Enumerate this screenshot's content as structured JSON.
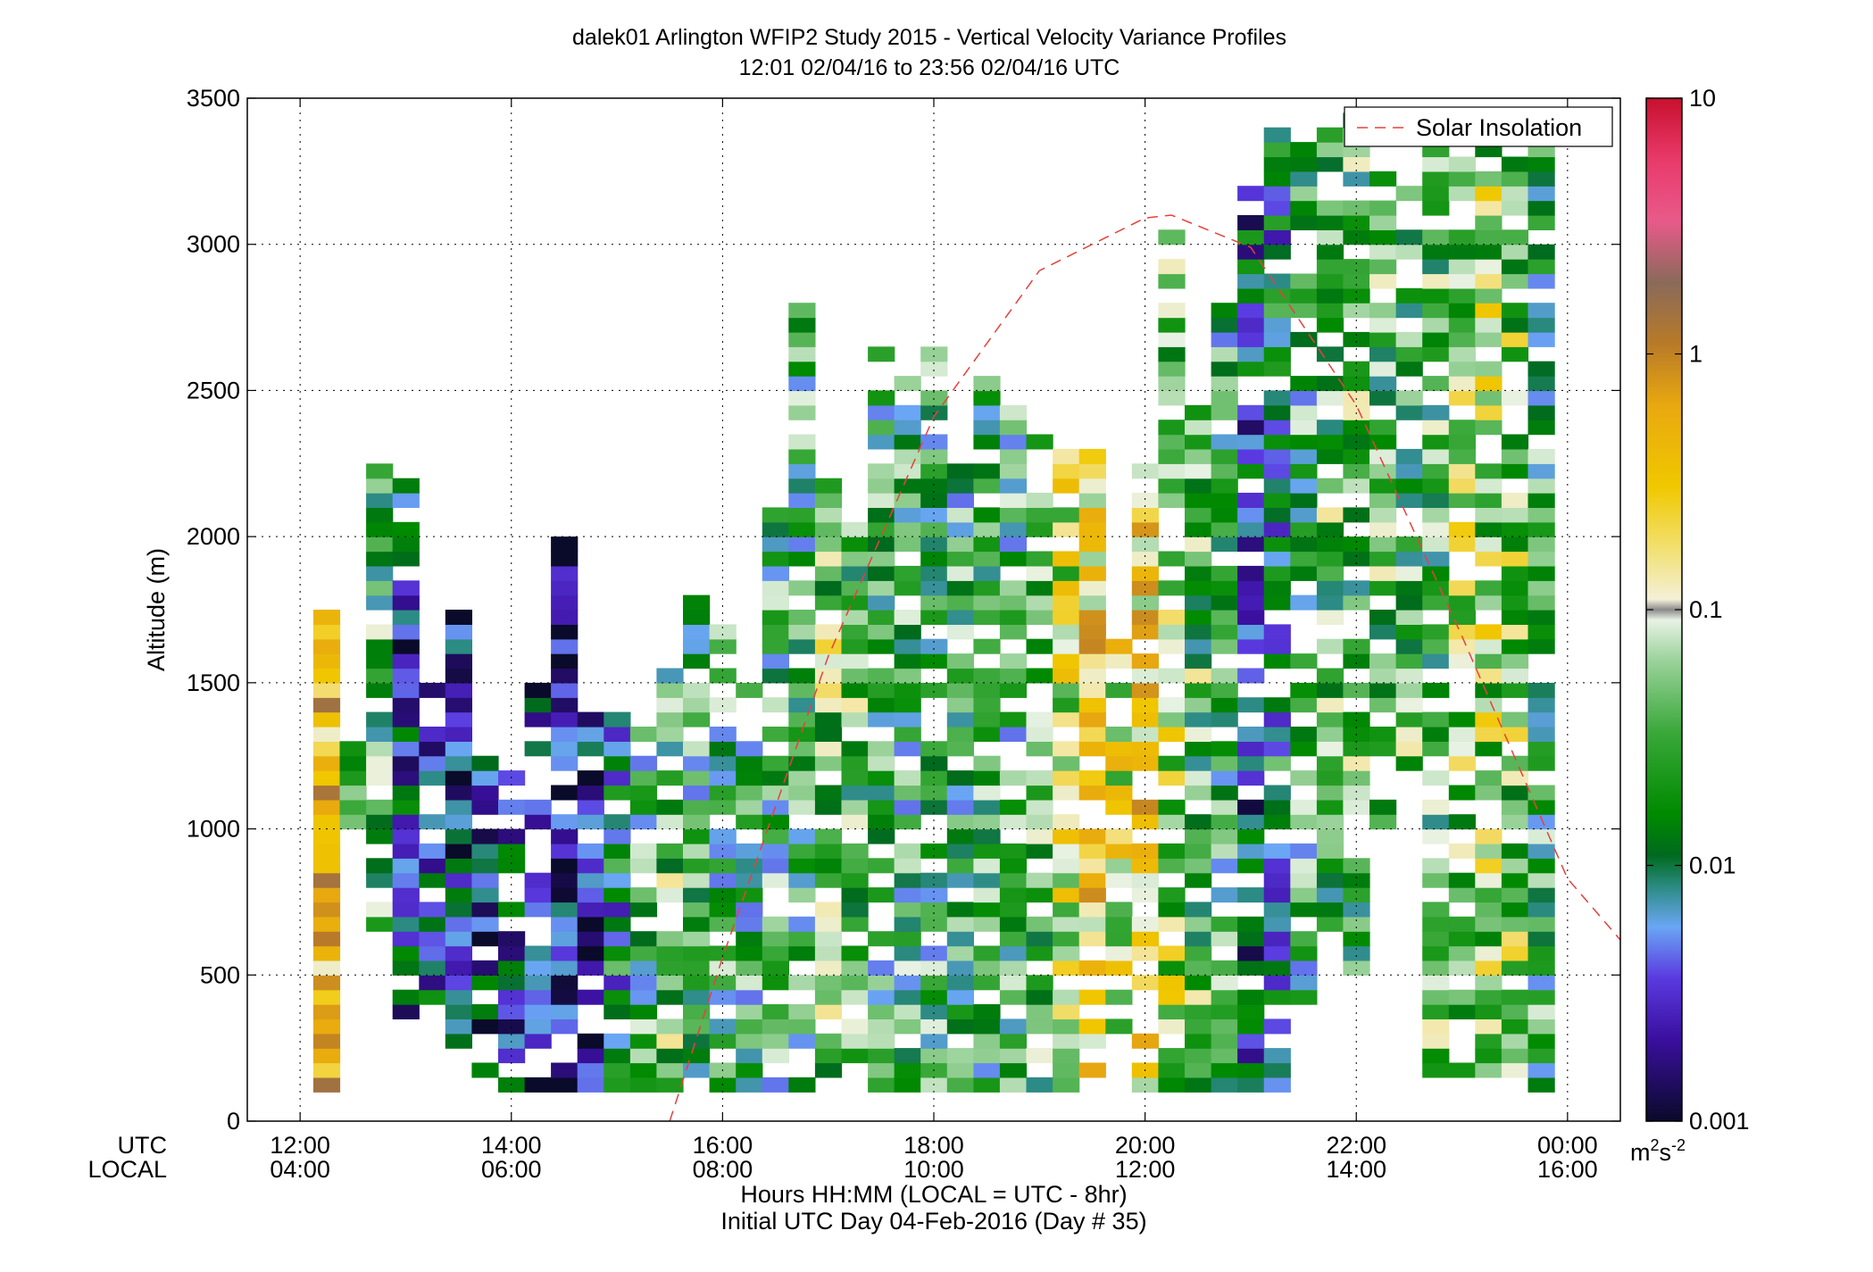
{
  "chart_data": {
    "type": "heatmap",
    "title": "dalek01 Arlington WFIP2 Study 2015 - Vertical Velocity Variance Profiles",
    "subtitle": "12:01 02/04/16 to 23:56 02/04/16  UTC",
    "ylabel": "Altitude (m)",
    "xlabel": "Hours HH:MM  (LOCAL = UTC - 8hr)",
    "xlabel2": "Initial UTC Day 04-Feb-2016 (Day # 35)",
    "x_row_labels": [
      "UTC",
      "LOCAL"
    ],
    "xlim_utc_hours": [
      11.5,
      24.5
    ],
    "ylim": [
      0,
      3500
    ],
    "x_ticks_utc": [
      "12:00",
      "14:00",
      "16:00",
      "18:00",
      "20:00",
      "22:00",
      "00:00"
    ],
    "x_ticks_local": [
      "04:00",
      "06:00",
      "08:00",
      "10:00",
      "12:00",
      "14:00",
      "16:00"
    ],
    "x_tick_values": [
      12,
      14,
      16,
      18,
      20,
      22,
      24
    ],
    "y_ticks": [
      0,
      500,
      1000,
      1500,
      2000,
      2500,
      3000,
      3500
    ],
    "grid": true,
    "colorbar": {
      "scale": "log",
      "range": [
        0.001,
        10
      ],
      "ticks": [
        "0.001",
        "0.01",
        "0.1",
        "1",
        "10"
      ],
      "tick_values": [
        0.001,
        0.01,
        0.1,
        1,
        10
      ],
      "unit_main": "m",
      "unit_sup1": "2",
      "unit_mid": "s",
      "unit_sup2": "-2"
    },
    "legend": {
      "position": "top-right",
      "entries": [
        "Solar Insolation"
      ]
    },
    "solar_insolation_curve": {
      "style": "red dashed",
      "x_utc_hours": [
        15.5,
        16,
        17,
        18,
        19,
        20,
        20.25,
        21,
        22,
        23,
        24,
        24.5
      ],
      "y": [
        0,
        560,
        1590,
        2410,
        2910,
        3090,
        3100,
        2990,
        2450,
        1660,
        830,
        620
      ]
    },
    "cells": {
      "time_step_minutes": 15,
      "altitude_step_m": 50,
      "note": "variance values in m^2 s^-2 shown by color",
      "columns": [
        {
          "t": 12.25,
          "z0": 100,
          "z1": 1750,
          "value": 0.4
        },
        {
          "t": 12.5,
          "z0": 1000,
          "z1": 1300,
          "value": 0.03
        },
        {
          "t": 12.75,
          "z0": 650,
          "z1": 2300,
          "value": 0.03
        },
        {
          "t": 13.0,
          "z0": 300,
          "z1": 2350,
          "value": 0.004
        },
        {
          "t": 13.25,
          "z0": 250,
          "z1": 1500,
          "value": 0.005
        },
        {
          "t": 13.5,
          "z0": 250,
          "z1": 1750,
          "value": 0.003
        },
        {
          "t": 13.75,
          "z0": 150,
          "z1": 1250,
          "value": 0.004
        },
        {
          "t": 14.0,
          "z0": 100,
          "z1": 1200,
          "value": 0.004
        },
        {
          "t": 14.25,
          "z0": 100,
          "z1": 1500,
          "value": 0.003
        },
        {
          "t": 14.5,
          "z0": 100,
          "z1": 2000,
          "value": 0.002
        },
        {
          "t": 14.75,
          "z0": 100,
          "z1": 1400,
          "value": 0.003
        },
        {
          "t": 15.0,
          "z0": 100,
          "z1": 1400,
          "value": 0.01
        },
        {
          "t": 15.25,
          "z0": 100,
          "z1": 1400,
          "value": 0.02
        },
        {
          "t": 15.5,
          "z0": 100,
          "z1": 1650,
          "value": 0.03
        },
        {
          "t": 15.75,
          "z0": 100,
          "z1": 1850,
          "value": 0.02
        },
        {
          "t": 16.0,
          "z0": 100,
          "z1": 1700,
          "value": 0.02
        },
        {
          "t": 16.25,
          "z0": 100,
          "z1": 1500,
          "value": 0.02
        },
        {
          "t": 16.5,
          "z0": 100,
          "z1": 2100,
          "value": 0.02
        },
        {
          "t": 16.75,
          "z0": 100,
          "z1": 2800,
          "value": 0.02
        },
        {
          "t": 17.0,
          "z0": 100,
          "z1": 2250,
          "value": 0.04
        },
        {
          "t": 17.25,
          "z0": 200,
          "z1": 2050,
          "value": 0.03
        },
        {
          "t": 17.5,
          "z0": 100,
          "z1": 2700,
          "value": 0.02
        },
        {
          "t": 17.75,
          "z0": 100,
          "z1": 2550,
          "value": 0.02
        },
        {
          "t": 18.0,
          "z0": 100,
          "z1": 2650,
          "value": 0.02
        },
        {
          "t": 18.25,
          "z0": 100,
          "z1": 2300,
          "value": 0.02
        },
        {
          "t": 18.5,
          "z0": 100,
          "z1": 2550,
          "value": 0.02
        },
        {
          "t": 18.75,
          "z0": 100,
          "z1": 2450,
          "value": 0.02
        },
        {
          "t": 19.0,
          "z0": 100,
          "z1": 2350,
          "value": 0.03
        },
        {
          "t": 19.25,
          "z0": 100,
          "z1": 2300,
          "value": 0.08
        },
        {
          "t": 19.5,
          "z0": 100,
          "z1": 2300,
          "value": 0.2
        },
        {
          "t": 19.75,
          "z0": 100,
          "z1": 1700,
          "value": 0.1
        },
        {
          "t": 20.0,
          "z0": 100,
          "z1": 2250,
          "value": 0.2
        },
        {
          "t": 20.25,
          "z0": 100,
          "z1": 3150,
          "value": 0.05
        },
        {
          "t": 20.5,
          "z0": 100,
          "z1": 2500,
          "value": 0.03
        },
        {
          "t": 20.75,
          "z0": 100,
          "z1": 2800,
          "value": 0.02
        },
        {
          "t": 21.0,
          "z0": 100,
          "z1": 3200,
          "value": 0.005
        },
        {
          "t": 21.25,
          "z0": 100,
          "z1": 3400,
          "value": 0.01
        },
        {
          "t": 21.5,
          "z0": 400,
          "z1": 3350,
          "value": 0.02
        },
        {
          "t": 21.75,
          "z0": 650,
          "z1": 3400,
          "value": 0.03
        },
        {
          "t": 22.0,
          "z0": 500,
          "z1": 3450,
          "value": 0.03
        },
        {
          "t": 22.25,
          "z0": 1000,
          "z1": 3250,
          "value": 0.03
        },
        {
          "t": 22.5,
          "z0": 1200,
          "z1": 3200,
          "value": 0.03
        },
        {
          "t": 22.75,
          "z0": 150,
          "z1": 3450,
          "value": 0.03
        },
        {
          "t": 23.0,
          "z0": 150,
          "z1": 3350,
          "value": 0.05
        },
        {
          "t": 23.25,
          "z0": 150,
          "z1": 3450,
          "value": 0.05
        },
        {
          "t": 23.5,
          "z0": 150,
          "z1": 3450,
          "value": 0.04
        },
        {
          "t": 23.75,
          "z0": 100,
          "z1": 3450,
          "value": 0.02
        }
      ]
    }
  }
}
